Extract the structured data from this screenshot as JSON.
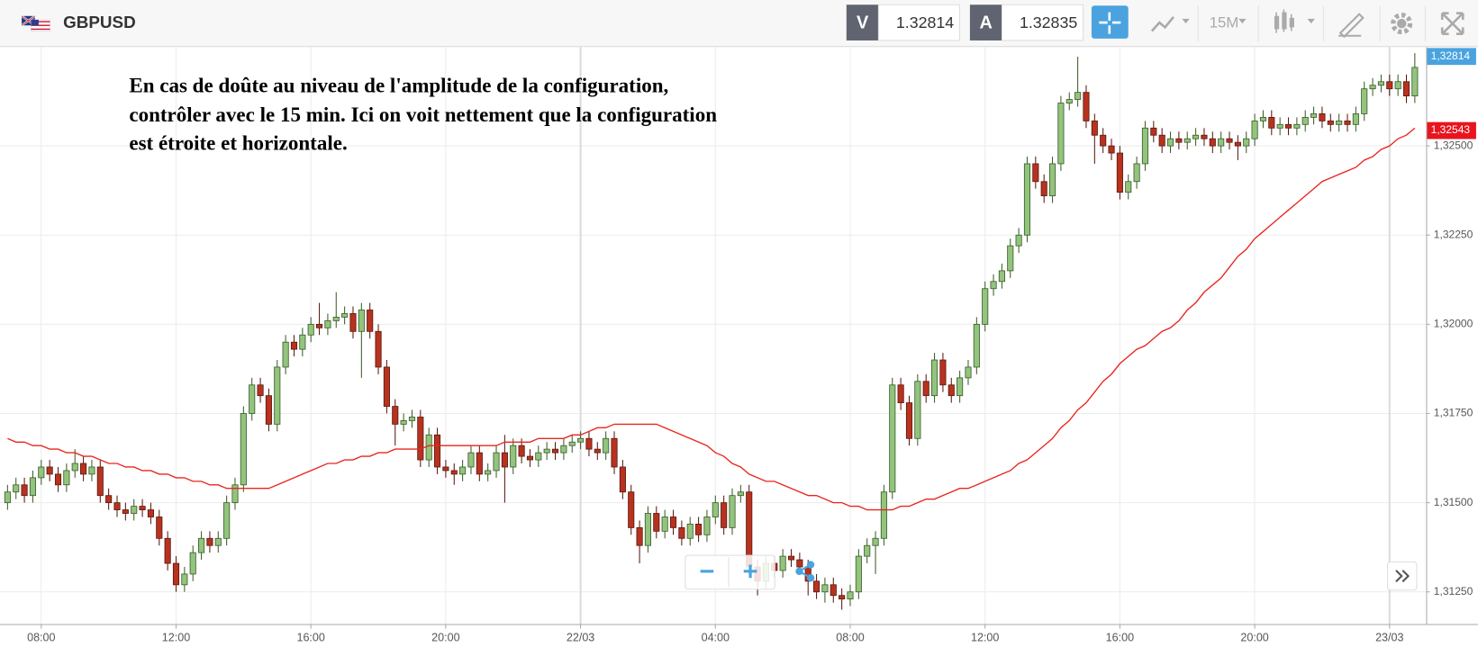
{
  "toolbar": {
    "symbol": "GBPUSD",
    "sell_label": "V",
    "sell_price": "1.32814",
    "buy_label": "A",
    "buy_price": "1.32835",
    "timeframe": "15M"
  },
  "chart_data": {
    "type": "candlestick",
    "annotation": [
      "En cas de doûte au niveau de l'amplitude de la configuration,",
      "contrôler avec le 15 min. Ici on voit nettement que la configuration",
      "est étroite et horizontale."
    ],
    "categories": [
      null,
      null,
      null,
      null,
      "08:00",
      null,
      null,
      null,
      null,
      null,
      null,
      null,
      null,
      null,
      null,
      null,
      null,
      null,
      null,
      null,
      "12:00",
      null,
      null,
      null,
      null,
      null,
      null,
      null,
      null,
      null,
      null,
      null,
      null,
      null,
      null,
      null,
      "16:00",
      null,
      null,
      null,
      null,
      null,
      null,
      null,
      null,
      null,
      null,
      null,
      null,
      null,
      null,
      null,
      "20:00",
      null,
      null,
      null,
      null,
      null,
      null,
      null,
      null,
      null,
      null,
      null,
      null,
      null,
      null,
      null,
      "22/03",
      null,
      null,
      null,
      null,
      null,
      null,
      null,
      null,
      null,
      null,
      null,
      null,
      null,
      null,
      null,
      "04:00",
      null,
      null,
      null,
      null,
      null,
      null,
      null,
      null,
      null,
      null,
      null,
      null,
      null,
      null,
      null,
      "08:00",
      null,
      null,
      null,
      null,
      null,
      null,
      null,
      null,
      null,
      null,
      null,
      null,
      null,
      null,
      null,
      "12:00",
      null,
      null,
      null,
      null,
      null,
      null,
      null,
      null,
      null,
      null,
      null,
      null,
      null,
      null,
      null,
      "16:00",
      null,
      null,
      null,
      null,
      null,
      null,
      null,
      null,
      null,
      null,
      null,
      null,
      null,
      null,
      null,
      "20:00",
      null,
      null,
      null,
      null,
      null,
      null,
      null,
      null,
      null,
      null,
      null,
      null,
      null,
      null,
      null,
      "23/03",
      null,
      null,
      null
    ],
    "open": [
      1.315,
      1.3153,
      1.3155,
      1.3152,
      1.3157,
      1.316,
      1.3158,
      1.3155,
      1.3159,
      1.3161,
      1.3158,
      1.316,
      1.3152,
      1.315,
      1.3148,
      1.3147,
      1.3149,
      1.3148,
      1.3146,
      1.314,
      1.3133,
      1.3127,
      1.313,
      1.3136,
      1.314,
      1.3138,
      1.314,
      1.315,
      1.3155,
      1.3175,
      1.3183,
      1.318,
      1.3172,
      1.3188,
      1.3195,
      1.3193,
      1.3197,
      1.32,
      1.3199,
      1.3201,
      1.3202,
      1.3203,
      1.3198,
      1.3204,
      1.3198,
      1.3188,
      1.3177,
      1.3172,
      1.3173,
      1.3174,
      1.3162,
      1.3169,
      1.316,
      1.3159,
      1.3158,
      1.316,
      1.3164,
      1.3158,
      1.3159,
      1.3164,
      1.316,
      1.3166,
      1.3163,
      1.3162,
      1.3164,
      1.3165,
      1.3164,
      1.3166,
      1.3167,
      1.3168,
      1.3165,
      1.3164,
      1.3168,
      1.316,
      1.3153,
      1.3143,
      1.3138,
      1.3147,
      1.3142,
      1.3146,
      1.3143,
      1.314,
      1.3144,
      1.3141,
      1.3146,
      1.315,
      1.3143,
      1.3152,
      1.3153,
      1.3132,
      1.3128,
      1.3133,
      1.3131,
      1.3135,
      1.3134,
      1.3132,
      1.3128,
      1.3125,
      1.3127,
      1.3124,
      1.3123,
      1.3125,
      1.3135,
      1.3138,
      1.314,
      1.3153,
      1.3183,
      1.3178,
      1.3168,
      1.3184,
      1.318,
      1.319,
      1.3183,
      1.318,
      1.3185,
      1.3188,
      1.32,
      1.321,
      1.3212,
      1.3215,
      1.3222,
      1.3225,
      1.3245,
      1.324,
      1.3236,
      1.3245,
      1.3262,
      1.3263,
      1.3265,
      1.3257,
      1.3253,
      1.325,
      1.3248,
      1.3237,
      1.324,
      1.3245,
      1.3255,
      1.3253,
      1.325,
      1.3252,
      1.3251,
      1.3252,
      1.3253,
      1.3252,
      1.325,
      1.3252,
      1.3251,
      1.325,
      1.3252,
      1.3257,
      1.3258,
      1.3255,
      1.3256,
      1.3255,
      1.3256,
      1.3258,
      1.3259,
      1.3257,
      1.3256,
      1.3257,
      1.3256,
      1.3259,
      1.3266,
      1.3267,
      1.3268,
      1.3266,
      1.3268,
      1.3264
    ],
    "high": [
      1.3155,
      1.3157,
      1.3157,
      1.3159,
      1.3162,
      1.3162,
      1.316,
      1.3161,
      1.3165,
      1.3163,
      1.3162,
      1.3162,
      1.3154,
      1.3152,
      1.315,
      1.3151,
      1.3151,
      1.315,
      1.3148,
      1.3142,
      1.3135,
      1.3132,
      1.3138,
      1.3142,
      1.3142,
      1.3142,
      1.3152,
      1.3157,
      1.3177,
      1.3185,
      1.3185,
      1.3182,
      1.319,
      1.3197,
      1.3197,
      1.3199,
      1.3202,
      1.3206,
      1.3203,
      1.3209,
      1.3205,
      1.3205,
      1.3206,
      1.3206,
      1.32,
      1.319,
      1.3179,
      1.3175,
      1.3176,
      1.3176,
      1.3171,
      1.3171,
      1.3162,
      1.3161,
      1.3162,
      1.3166,
      1.3166,
      1.3161,
      1.3166,
      1.3169,
      1.3168,
      1.3168,
      1.3165,
      1.3166,
      1.3167,
      1.3167,
      1.3168,
      1.3169,
      1.317,
      1.317,
      1.3167,
      1.317,
      1.317,
      1.3162,
      1.3155,
      1.3145,
      1.3149,
      1.3149,
      1.3148,
      1.3148,
      1.3145,
      1.3146,
      1.3146,
      1.3148,
      1.3152,
      1.3152,
      1.3154,
      1.3155,
      1.3155,
      1.3134,
      1.3135,
      1.3135,
      1.3137,
      1.3137,
      1.3136,
      1.3134,
      1.313,
      1.3129,
      1.3129,
      1.3126,
      1.3127,
      1.3137,
      1.314,
      1.3142,
      1.3155,
      1.3185,
      1.3185,
      1.318,
      1.3186,
      1.3186,
      1.3192,
      1.3192,
      1.3185,
      1.3187,
      1.319,
      1.3202,
      1.3212,
      1.3214,
      1.3217,
      1.3224,
      1.3227,
      1.3247,
      1.3247,
      1.3242,
      1.3247,
      1.3264,
      1.3265,
      1.3275,
      1.3267,
      1.3259,
      1.3255,
      1.3252,
      1.325,
      1.3242,
      1.3247,
      1.3257,
      1.3257,
      1.3255,
      1.3254,
      1.3254,
      1.3254,
      1.3255,
      1.3255,
      1.3254,
      1.3254,
      1.3254,
      1.3253,
      1.3254,
      1.3259,
      1.326,
      1.326,
      1.3258,
      1.3258,
      1.3258,
      1.326,
      1.3261,
      1.3261,
      1.3259,
      1.3259,
      1.3259,
      1.3261,
      1.3268,
      1.3269,
      1.327,
      1.327,
      1.327,
      1.327,
      1.3276
    ],
    "low": [
      1.3148,
      1.3151,
      1.315,
      1.315,
      1.3155,
      1.3156,
      1.3153,
      1.3153,
      1.3157,
      1.3156,
      1.3156,
      1.315,
      1.3148,
      1.3146,
      1.3145,
      1.3145,
      1.3146,
      1.3144,
      1.3138,
      1.3131,
      1.3125,
      1.3125,
      1.3128,
      1.3134,
      1.3136,
      1.3136,
      1.3138,
      1.3148,
      1.3153,
      1.3173,
      1.3178,
      1.317,
      1.317,
      1.3186,
      1.3191,
      1.3191,
      1.3195,
      1.3197,
      1.3197,
      1.3199,
      1.32,
      1.3196,
      1.3185,
      1.3196,
      1.3186,
      1.3175,
      1.3166,
      1.317,
      1.3171,
      1.316,
      1.316,
      1.3158,
      1.3157,
      1.3155,
      1.3156,
      1.3158,
      1.3156,
      1.3156,
      1.3157,
      1.315,
      1.3158,
      1.3161,
      1.316,
      1.316,
      1.3162,
      1.3162,
      1.3162,
      1.3164,
      1.3165,
      1.3163,
      1.3162,
      1.3162,
      1.3158,
      1.3151,
      1.3141,
      1.3133,
      1.3136,
      1.314,
      1.314,
      1.3141,
      1.3138,
      1.3138,
      1.3139,
      1.3139,
      1.3144,
      1.3141,
      1.3141,
      1.315,
      1.313,
      1.3124,
      1.3126,
      1.3129,
      1.3129,
      1.3132,
      1.313,
      1.3124,
      1.3123,
      1.3122,
      1.3122,
      1.312,
      1.3121,
      1.3123,
      1.3133,
      1.313,
      1.3138,
      1.3151,
      1.3176,
      1.3166,
      1.3166,
      1.3178,
      1.3178,
      1.3181,
      1.3178,
      1.3178,
      1.3183,
      1.3186,
      1.3198,
      1.3208,
      1.321,
      1.3213,
      1.322,
      1.3223,
      1.3238,
      1.3234,
      1.3234,
      1.3243,
      1.326,
      1.3261,
      1.3255,
      1.3245,
      1.3248,
      1.3246,
      1.3235,
      1.3235,
      1.3238,
      1.3243,
      1.3251,
      1.3248,
      1.3248,
      1.3249,
      1.3249,
      1.325,
      1.325,
      1.3248,
      1.3248,
      1.3249,
      1.3246,
      1.3248,
      1.325,
      1.3255,
      1.3253,
      1.3253,
      1.3253,
      1.3253,
      1.3254,
      1.3256,
      1.3255,
      1.3254,
      1.3254,
      1.3254,
      1.3254,
      1.3257,
      1.3264,
      1.3265,
      1.3264,
      1.3264,
      1.3262,
      1.3262
    ],
    "close": [
      1.3153,
      1.3155,
      1.3152,
      1.3157,
      1.316,
      1.3158,
      1.3155,
      1.3159,
      1.3161,
      1.3158,
      1.316,
      1.3152,
      1.315,
      1.3148,
      1.3147,
      1.3149,
      1.3148,
      1.3146,
      1.314,
      1.3133,
      1.3127,
      1.313,
      1.3136,
      1.314,
      1.3138,
      1.314,
      1.315,
      1.3155,
      1.3175,
      1.3183,
      1.318,
      1.3172,
      1.3188,
      1.3195,
      1.3193,
      1.3197,
      1.32,
      1.3199,
      1.3201,
      1.3202,
      1.3203,
      1.3198,
      1.3204,
      1.3198,
      1.3188,
      1.3177,
      1.3172,
      1.3173,
      1.3174,
      1.3162,
      1.3169,
      1.316,
      1.3159,
      1.3158,
      1.316,
      1.3164,
      1.3158,
      1.3159,
      1.3164,
      1.316,
      1.3166,
      1.3163,
      1.3162,
      1.3164,
      1.3165,
      1.3164,
      1.3166,
      1.3167,
      1.3168,
      1.3165,
      1.3164,
      1.3168,
      1.316,
      1.3153,
      1.3143,
      1.3138,
      1.3147,
      1.3142,
      1.3146,
      1.3143,
      1.314,
      1.3144,
      1.3141,
      1.3146,
      1.315,
      1.3143,
      1.3152,
      1.3153,
      1.3132,
      1.3128,
      1.3133,
      1.3131,
      1.3135,
      1.3134,
      1.3132,
      1.3128,
      1.3125,
      1.3127,
      1.3124,
      1.3123,
      1.3125,
      1.3135,
      1.3138,
      1.314,
      1.3153,
      1.3183,
      1.3178,
      1.3168,
      1.3184,
      1.318,
      1.319,
      1.3183,
      1.318,
      1.3185,
      1.3188,
      1.32,
      1.321,
      1.3212,
      1.3215,
      1.3222,
      1.3225,
      1.3245,
      1.324,
      1.3236,
      1.3245,
      1.3262,
      1.3263,
      1.3265,
      1.3257,
      1.3253,
      1.325,
      1.3248,
      1.3237,
      1.324,
      1.3245,
      1.3255,
      1.3253,
      1.325,
      1.3252,
      1.3251,
      1.3252,
      1.3253,
      1.3252,
      1.325,
      1.3252,
      1.3251,
      1.325,
      1.3252,
      1.3257,
      1.3258,
      1.3255,
      1.3256,
      1.3255,
      1.3256,
      1.3258,
      1.3259,
      1.3257,
      1.3256,
      1.3257,
      1.3256,
      1.3259,
      1.3266,
      1.3267,
      1.3268,
      1.3266,
      1.3268,
      1.3264,
      1.3272
    ],
    "up_color": "#93c47d",
    "down_color": "#b8321f",
    "moving_average": {
      "color": "#e8261e",
      "values": [
        1.3168,
        1.3167,
        1.3167,
        1.3166,
        1.3166,
        1.3165,
        1.3165,
        1.3164,
        1.3164,
        1.3163,
        1.3163,
        1.3162,
        1.3161,
        1.3161,
        1.316,
        1.316,
        1.3159,
        1.3159,
        1.3158,
        1.3158,
        1.3157,
        1.3157,
        1.3156,
        1.3156,
        1.3155,
        1.3155,
        1.3154,
        1.3154,
        1.3154,
        1.3154,
        1.3154,
        1.3154,
        1.3155,
        1.3156,
        1.3157,
        1.3158,
        1.3159,
        1.316,
        1.3161,
        1.3161,
        1.3162,
        1.3162,
        1.3163,
        1.3163,
        1.3164,
        1.3164,
        1.3165,
        1.3165,
        1.3165,
        1.3165,
        1.3166,
        1.3166,
        1.3166,
        1.3166,
        1.3166,
        1.3166,
        1.3166,
        1.3166,
        1.3166,
        1.3167,
        1.3167,
        1.3167,
        1.3167,
        1.3168,
        1.3168,
        1.3168,
        1.3168,
        1.3169,
        1.3169,
        1.317,
        1.3171,
        1.3171,
        1.3172,
        1.3172,
        1.3172,
        1.3172,
        1.3172,
        1.3172,
        1.3171,
        1.317,
        1.3169,
        1.3168,
        1.3167,
        1.3166,
        1.3164,
        1.3163,
        1.3161,
        1.316,
        1.3158,
        1.3157,
        1.3156,
        1.3156,
        1.3155,
        1.3154,
        1.3153,
        1.3152,
        1.3152,
        1.3151,
        1.315,
        1.315,
        1.3149,
        1.3149,
        1.3148,
        1.3148,
        1.3148,
        1.3148,
        1.3149,
        1.3149,
        1.315,
        1.3151,
        1.3151,
        1.3152,
        1.3153,
        1.3154,
        1.3154,
        1.3155,
        1.3156,
        1.3157,
        1.3158,
        1.3159,
        1.3161,
        1.3162,
        1.3164,
        1.3166,
        1.3168,
        1.3171,
        1.3173,
        1.3176,
        1.3178,
        1.3181,
        1.3184,
        1.3186,
        1.3189,
        1.3191,
        1.3193,
        1.3194,
        1.3196,
        1.3198,
        1.3199,
        1.3201,
        1.3204,
        1.3206,
        1.3209,
        1.3211,
        1.3213,
        1.3216,
        1.3219,
        1.3221,
        1.3224,
        1.3226,
        1.3228,
        1.323,
        1.3232,
        1.3234,
        1.3236,
        1.3238,
        1.324,
        1.3241,
        1.3242,
        1.3243,
        1.3244,
        1.3246,
        1.3247,
        1.3249,
        1.325,
        1.3252,
        1.3253,
        1.3255
      ]
    },
    "last_price": {
      "value": 1.32814,
      "label": "1,32814",
      "color": "#4aa3df"
    },
    "average_price": {
      "value": 1.32543,
      "label": "1,32543",
      "color": "#e8141e"
    },
    "ylim": [
      1.3116,
      1.32777
    ],
    "yticks": [
      {
        "value": 1.325,
        "label": "1,32500"
      },
      {
        "value": 1.3225,
        "label": "1,32250"
      },
      {
        "value": 1.32,
        "label": "1,32000"
      },
      {
        "value": 1.3175,
        "label": "1,31750"
      },
      {
        "value": 1.315,
        "label": "1,31500"
      },
      {
        "value": 1.3125,
        "label": "1,31250"
      }
    ],
    "grid": true
  }
}
